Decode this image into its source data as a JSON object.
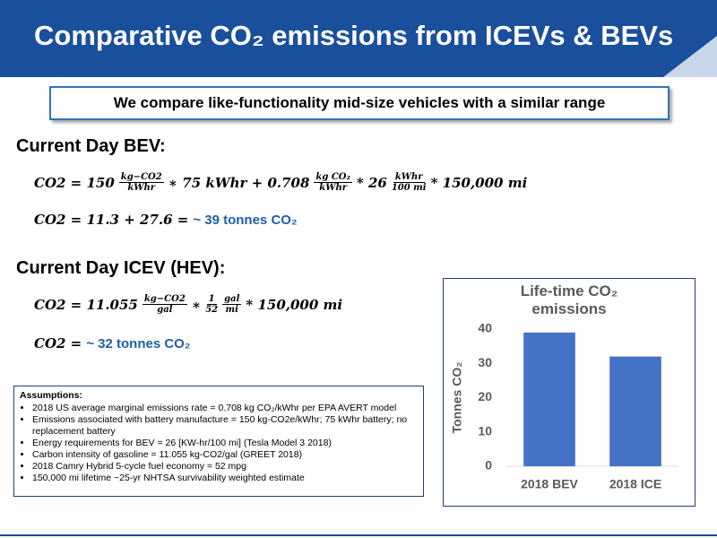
{
  "header": {
    "title": "Comparative CO₂ emissions from ICEVs & BEVs"
  },
  "callout": "We compare like-functionality mid-size vehicles with a similar range",
  "highlight_color": "#1f5fa8",
  "bev": {
    "heading": "Current Day BEV:",
    "equations": [
      [
        "CO2 = 150",
        {
          "num": "kg−CO2",
          "den": "kWhr"
        },
        "∗ 75 kWhr + 0.708",
        {
          "num": "kg CO₂",
          "den": "kWhr"
        },
        "* 26",
        {
          "num": "kWhr",
          "den": "100 mi"
        },
        "* 150,000 mi"
      ],
      [
        "CO2 = 11.3 + 27.6 =",
        {
          "highlight": "~ 39 tonnes CO₂"
        }
      ]
    ]
  },
  "icev": {
    "heading": "Current Day ICEV (HEV):",
    "equations": [
      [
        "CO2 = 11.055",
        {
          "num": "kg−CO2",
          "den": "gal"
        },
        "∗",
        {
          "num": "1",
          "den": "52"
        },
        {
          "num": "gal",
          "den": "mi"
        },
        "* 150,000 mi"
      ],
      [
        "CO2 =",
        {
          "highlight": "~ 32 tonnes CO₂"
        }
      ]
    ]
  },
  "assumptions": {
    "title": "Assumptions:",
    "items": [
      "2018 US average marginal emissions rate = 0.708 kg CO₂/kWhr per EPA AVERT model",
      "Emissions associated with battery manufacture = 150 kg-CO2e/kWhr; 75 kWhr battery; no replacement battery",
      "Energy requirements for BEV = 26 [KW-hr/100 mi] (Tesla Model 3 2018)",
      "Carbon intensity of gasoline = 11.055 kg-CO2/gal (GREET 2018)",
      "2018 Camry Hybrid 5-cycle fuel economy = 52 mpg",
      "150,000 mi lifetime ~25-yr NHTSA survivability weighted estimate"
    ]
  },
  "chart_data": {
    "type": "bar",
    "title": "Life-time CO₂ emissions",
    "ylabel": "Tonnes CO₂",
    "categories": [
      "2018 BEV",
      "2018 ICE"
    ],
    "values": [
      39,
      32
    ],
    "color": "#4472c4",
    "ylim": [
      0,
      40
    ],
    "yticks": [
      0,
      10,
      20,
      30,
      40
    ],
    "grid": false
  }
}
